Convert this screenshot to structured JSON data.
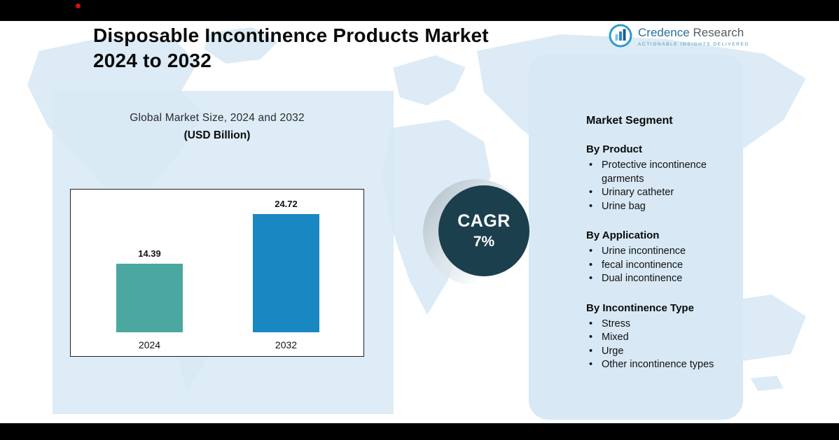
{
  "header": {
    "title_line1": "Disposable Incontinence Products Market",
    "title_line2": "2024 to 2032",
    "logo": {
      "brand_primary": "Credence",
      "brand_secondary": "Research",
      "tagline": "Actionable Insights Delivered"
    }
  },
  "chart_data": {
    "type": "bar",
    "title": "Global Market Size, 2024 and 2032",
    "subtitle": "(USD Billion)",
    "categories": [
      "2024",
      "2032"
    ],
    "values": [
      14.39,
      24.72
    ],
    "ylim": [
      0,
      30
    ],
    "bar_colors": [
      "#4aa8a0",
      "#1987c2"
    ],
    "grid": false,
    "legend": false
  },
  "cagr": {
    "label": "CAGR",
    "value": "7%"
  },
  "segments": {
    "heading": "Market Segment",
    "groups": [
      {
        "title": "By Product",
        "items": [
          "Protective incontinence garments",
          "Urinary catheter",
          "Urine bag"
        ]
      },
      {
        "title": "By Application",
        "items": [
          "Urine incontinence",
          "fecal incontinence",
          "Dual incontinence"
        ]
      },
      {
        "title": "By Incontinence Type",
        "items": [
          "Stress",
          "Mixed",
          "Urge",
          "Other incontinence types"
        ]
      }
    ]
  },
  "colors": {
    "bar_2024": "#4aa8a0",
    "bar_2032": "#1987c2",
    "cagr_circle": "#1c3f4e",
    "panel_blue": "#d8e9f5",
    "top_bar": "#000000",
    "accent_red": "#d40f0f"
  }
}
